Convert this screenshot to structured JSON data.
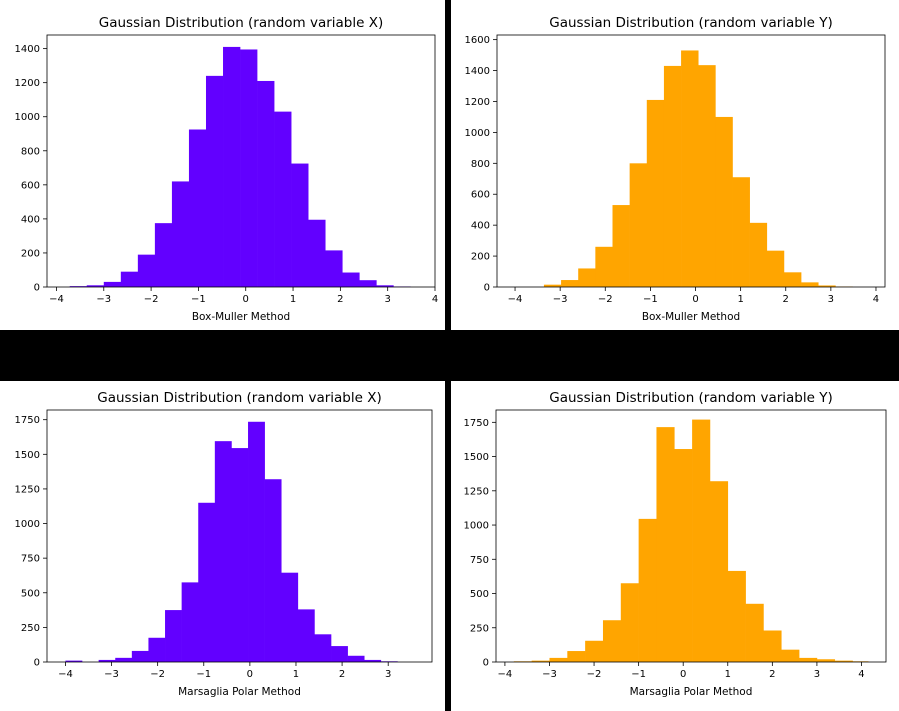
{
  "chart_data": [
    {
      "type": "bar",
      "title": "Gaussian Distribution (random variable X)",
      "xlabel": "Box-Muller Method",
      "ylabel": "",
      "color": "#6200ff",
      "xlim": [
        -4.2,
        4.0
      ],
      "ylim": [
        0,
        1480
      ],
      "xticks": [
        -4,
        -3,
        -2,
        -1,
        0,
        1,
        2,
        3,
        4
      ],
      "yticks": [
        0,
        200,
        400,
        600,
        800,
        1000,
        1200,
        1400
      ],
      "bin_edges": [
        -3.72,
        -3.36,
        -3.0,
        -2.64,
        -2.28,
        -1.92,
        -1.56,
        -1.2,
        -0.84,
        -0.48,
        -0.12,
        0.24,
        0.6,
        0.96,
        1.32,
        1.68,
        2.04,
        2.4,
        2.76,
        3.12,
        3.48,
        3.6
      ],
      "values": [
        5,
        10,
        30,
        90,
        190,
        375,
        620,
        925,
        1240,
        1410,
        1395,
        1210,
        1030,
        725,
        395,
        215,
        85,
        40,
        10,
        3,
        0
      ]
    },
    {
      "type": "bar",
      "title": "Gaussian Distribution (random variable Y)",
      "xlabel": "Box-Muller Method",
      "ylabel": "",
      "color": "#ffa500",
      "xlim": [
        -4.4,
        4.2
      ],
      "ylim": [
        0,
        1630
      ],
      "xticks": [
        -4,
        -3,
        -2,
        -1,
        0,
        1,
        2,
        3,
        4
      ],
      "yticks": [
        0,
        200,
        400,
        600,
        800,
        1000,
        1200,
        1400,
        1600
      ],
      "bin_edges": [
        -3.36,
        -2.98,
        -2.6,
        -2.22,
        -1.84,
        -1.46,
        -1.08,
        -0.7,
        -0.32,
        0.06,
        0.44,
        0.82,
        1.2,
        1.58,
        1.96,
        2.34,
        2.72,
        3.1,
        3.48
      ],
      "values": [
        15,
        45,
        120,
        260,
        530,
        800,
        1210,
        1430,
        1530,
        1435,
        1100,
        710,
        415,
        235,
        95,
        30,
        10,
        3
      ]
    },
    {
      "type": "bar",
      "title": "Gaussian Distribution (random variable X)",
      "xlabel": "Marsaglia Polar Method",
      "ylabel": "",
      "color": "#6200ff",
      "xlim": [
        -4.4,
        3.95
      ],
      "ylim": [
        0,
        1820
      ],
      "xticks": [
        -4,
        -3,
        -2,
        -1,
        0,
        1,
        2,
        3
      ],
      "yticks": [
        0,
        250,
        500,
        750,
        1000,
        1250,
        1500,
        1750
      ],
      "bin_edges": [
        -4.0,
        -3.64,
        -3.28,
        -2.92,
        -2.56,
        -2.2,
        -1.84,
        -1.48,
        -1.12,
        -0.76,
        -0.4,
        -0.04,
        0.32,
        0.68,
        1.04,
        1.4,
        1.76,
        2.12,
        2.48,
        2.84,
        3.2
      ],
      "values": [
        10,
        0,
        15,
        30,
        80,
        175,
        375,
        575,
        1150,
        1595,
        1545,
        1735,
        1320,
        645,
        380,
        200,
        115,
        45,
        15,
        5
      ]
    },
    {
      "type": "bar",
      "title": "Gaussian Distribution (random variable Y)",
      "xlabel": "Marsaglia Polar Method",
      "ylabel": "",
      "color": "#ffa500",
      "xlim": [
        -4.2,
        4.55
      ],
      "ylim": [
        0,
        1840
      ],
      "xticks": [
        -4,
        -3,
        -2,
        -1,
        0,
        1,
        2,
        3,
        4
      ],
      "yticks": [
        0,
        250,
        500,
        750,
        1000,
        1250,
        1500,
        1750
      ],
      "bin_edges": [
        -3.8,
        -3.4,
        -3.0,
        -2.6,
        -2.2,
        -1.8,
        -1.4,
        -1.0,
        -0.6,
        -0.2,
        0.2,
        0.6,
        1.0,
        1.4,
        1.8,
        2.2,
        2.6,
        3.0,
        3.4,
        3.8,
        4.15
      ],
      "values": [
        5,
        10,
        30,
        80,
        155,
        305,
        575,
        1045,
        1715,
        1555,
        1770,
        1320,
        665,
        425,
        230,
        90,
        30,
        20,
        10,
        5
      ]
    }
  ]
}
